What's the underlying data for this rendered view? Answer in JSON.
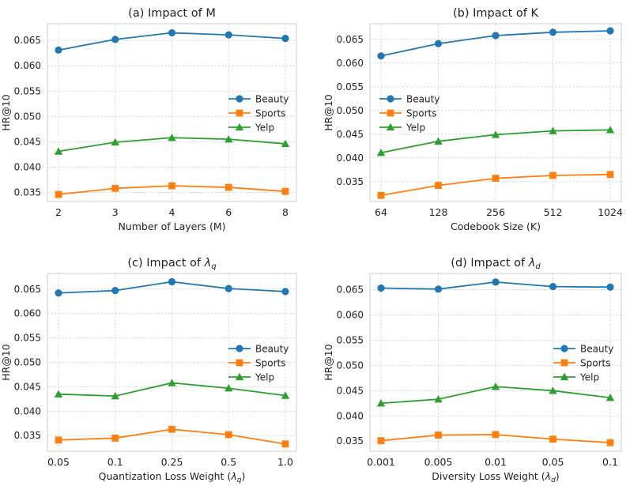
{
  "colors": {
    "Beauty": "#1f77b4",
    "Sports": "#ff7f0e",
    "Yelp": "#2ca02c",
    "grid": "#d0d0d0",
    "frame": "#cccccc"
  },
  "chart_data": [
    {
      "type": "line",
      "title_prefix": "(a) Impact of ",
      "title_symbol": "M",
      "title_sub": "",
      "xlabel_prefix": "Number of Layers (M)",
      "xlabel_sub": "",
      "xlabel_suffix": "",
      "ylabel": "HR@10",
      "categories": [
        "2",
        "3",
        "4",
        "6",
        "8"
      ],
      "ylim": [
        0.0332,
        0.0683
      ],
      "yticks": [
        "0.035",
        "0.040",
        "0.045",
        "0.050",
        "0.055",
        "0.060",
        "0.065"
      ],
      "legend_position": "center-right",
      "series": [
        {
          "name": "Beauty",
          "marker": "circle",
          "values": [
            0.0631,
            0.0652,
            0.0665,
            0.0661,
            0.0654
          ]
        },
        {
          "name": "Sports",
          "marker": "square",
          "values": [
            0.0346,
            0.0358,
            0.0363,
            0.036,
            0.0352
          ]
        },
        {
          "name": "Yelp",
          "marker": "triangle",
          "values": [
            0.0431,
            0.0449,
            0.0458,
            0.0455,
            0.0446
          ]
        }
      ]
    },
    {
      "type": "line",
      "title_prefix": "(b) Impact of ",
      "title_symbol": "K",
      "title_sub": "",
      "xlabel_prefix": "Codebook Size (K)",
      "xlabel_sub": "",
      "xlabel_suffix": "",
      "ylabel": "HR@10",
      "categories": [
        "64",
        "128",
        "256",
        "512",
        "1024"
      ],
      "ylim": [
        0.0308,
        0.0683
      ],
      "yticks": [
        "0.035",
        "0.040",
        "0.045",
        "0.050",
        "0.055",
        "0.060",
        "0.065"
      ],
      "legend_position": "center-left",
      "series": [
        {
          "name": "Beauty",
          "marker": "circle",
          "values": [
            0.0615,
            0.0641,
            0.0658,
            0.0665,
            0.0668
          ]
        },
        {
          "name": "Sports",
          "marker": "square",
          "values": [
            0.0321,
            0.0342,
            0.0357,
            0.0363,
            0.0365
          ]
        },
        {
          "name": "Yelp",
          "marker": "triangle",
          "values": [
            0.0411,
            0.0435,
            0.0449,
            0.0457,
            0.0459
          ]
        }
      ]
    },
    {
      "type": "line",
      "title_prefix": "(c) Impact of ",
      "title_symbol": "λ",
      "title_sub": "q",
      "xlabel_prefix": "Quantization Loss Weight (",
      "xlabel_sub": "q",
      "xlabel_suffix": ")",
      "ylabel": "HR@10",
      "categories": [
        "0.05",
        "0.1",
        "0.25",
        "0.5",
        "1.0"
      ],
      "ylim": [
        0.0318,
        0.0682
      ],
      "yticks": [
        "0.035",
        "0.040",
        "0.045",
        "0.050",
        "0.055",
        "0.060",
        "0.065"
      ],
      "legend_position": "center-right",
      "series": [
        {
          "name": "Beauty",
          "marker": "circle",
          "values": [
            0.0642,
            0.0647,
            0.0665,
            0.0651,
            0.0645
          ]
        },
        {
          "name": "Sports",
          "marker": "square",
          "values": [
            0.0341,
            0.0345,
            0.0363,
            0.0352,
            0.0333
          ]
        },
        {
          "name": "Yelp",
          "marker": "triangle",
          "values": [
            0.0435,
            0.0431,
            0.0458,
            0.0447,
            0.0432
          ]
        }
      ]
    },
    {
      "type": "line",
      "title_prefix": "(d) Impact of ",
      "title_symbol": "λ",
      "title_sub": "d",
      "xlabel_prefix": "Diversity Loss Weight (",
      "xlabel_sub": "d",
      "xlabel_suffix": ")",
      "ylabel": "HR@10",
      "categories": [
        "0.001",
        "0.005",
        "0.01",
        "0.05",
        "0.1"
      ],
      "ylim": [
        0.033,
        0.0682
      ],
      "yticks": [
        "0.035",
        "0.040",
        "0.045",
        "0.050",
        "0.055",
        "0.060",
        "0.065"
      ],
      "legend_position": "center-right",
      "series": [
        {
          "name": "Beauty",
          "marker": "circle",
          "values": [
            0.0653,
            0.0651,
            0.0665,
            0.0656,
            0.0655
          ]
        },
        {
          "name": "Sports",
          "marker": "square",
          "values": [
            0.0351,
            0.0362,
            0.0363,
            0.0354,
            0.0347
          ]
        },
        {
          "name": "Yelp",
          "marker": "triangle",
          "values": [
            0.0425,
            0.0433,
            0.0458,
            0.045,
            0.0436
          ]
        }
      ]
    }
  ]
}
